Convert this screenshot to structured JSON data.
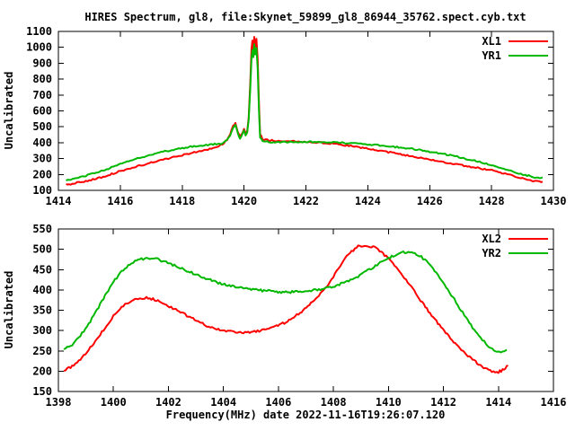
{
  "title": "HIRES Spectrum, gl8, file:Skynet_59899_gl8_86944_35762.spect.cyb.txt",
  "colors": {
    "red_series": "#ff0000",
    "green_series": "#00b800",
    "axis": "#000000",
    "background": "#ffffff",
    "text": "#000000"
  },
  "chart_data": [
    {
      "type": "line",
      "ylabel": "Uncalibrated",
      "xlabel": "",
      "xlim": [
        1414,
        1430
      ],
      "ylim": [
        100,
        1100
      ],
      "xticks": [
        1414,
        1416,
        1418,
        1420,
        1422,
        1424,
        1426,
        1428,
        1430
      ],
      "yticks": [
        100,
        200,
        300,
        400,
        500,
        600,
        700,
        800,
        900,
        1000,
        1100
      ],
      "grid": false,
      "legend_position": "top-right",
      "series": [
        {
          "name": "XL1",
          "color": "#ff0000",
          "points": [
            [
              1414.25,
              135
            ],
            [
              1414.6,
              148
            ],
            [
              1415,
              163
            ],
            [
              1415.5,
              188
            ],
            [
              1416,
              222
            ],
            [
              1416.5,
              249
            ],
            [
              1417,
              274
            ],
            [
              1417.5,
              299
            ],
            [
              1418,
              322
            ],
            [
              1418.5,
              344
            ],
            [
              1419,
              365
            ],
            [
              1419.3,
              390
            ],
            [
              1419.45,
              418
            ],
            [
              1419.55,
              452
            ],
            [
              1419.65,
              505
            ],
            [
              1419.72,
              520
            ],
            [
              1419.8,
              468
            ],
            [
              1419.87,
              436
            ],
            [
              1419.95,
              464
            ],
            [
              1420,
              486
            ],
            [
              1420.05,
              456
            ],
            [
              1420.1,
              470
            ],
            [
              1420.15,
              560
            ],
            [
              1420.2,
              770
            ],
            [
              1420.24,
              990
            ],
            [
              1420.27,
              1040
            ],
            [
              1420.3,
              990
            ],
            [
              1420.33,
              1065
            ],
            [
              1420.36,
              1005
            ],
            [
              1420.4,
              1050
            ],
            [
              1420.44,
              930
            ],
            [
              1420.48,
              650
            ],
            [
              1420.52,
              455
            ],
            [
              1420.6,
              422
            ],
            [
              1420.8,
              415
            ],
            [
              1421,
              412
            ],
            [
              1421.5,
              409
            ],
            [
              1422,
              406
            ],
            [
              1422.5,
              400
            ],
            [
              1423,
              391
            ],
            [
              1423.5,
              378
            ],
            [
              1424,
              362
            ],
            [
              1424.5,
              346
            ],
            [
              1425,
              329
            ],
            [
              1425.5,
              311
            ],
            [
              1426,
              293
            ],
            [
              1426.5,
              276
            ],
            [
              1427,
              259
            ],
            [
              1427.5,
              243
            ],
            [
              1428,
              226
            ],
            [
              1428.5,
              201
            ],
            [
              1429,
              176
            ],
            [
              1429.3,
              161
            ],
            [
              1429.5,
              155
            ],
            [
              1429.65,
              155
            ]
          ]
        },
        {
          "name": "YR1",
          "color": "#00b800",
          "points": [
            [
              1414.25,
              162
            ],
            [
              1414.6,
              178
            ],
            [
              1415,
              198
            ],
            [
              1415.5,
              228
            ],
            [
              1416,
              264
            ],
            [
              1416.5,
              297
            ],
            [
              1417,
              324
            ],
            [
              1417.5,
              347
            ],
            [
              1418,
              366
            ],
            [
              1418.5,
              380
            ],
            [
              1419,
              389
            ],
            [
              1419.3,
              394
            ],
            [
              1419.45,
              415
            ],
            [
              1419.55,
              448
            ],
            [
              1419.65,
              497
            ],
            [
              1419.72,
              511
            ],
            [
              1419.8,
              460
            ],
            [
              1419.87,
              429
            ],
            [
              1419.95,
              456
            ],
            [
              1420,
              478
            ],
            [
              1420.05,
              449
            ],
            [
              1420.1,
              461
            ],
            [
              1420.15,
              540
            ],
            [
              1420.2,
              730
            ],
            [
              1420.24,
              930
            ],
            [
              1420.27,
              985
            ],
            [
              1420.3,
              935
            ],
            [
              1420.33,
              1022
            ],
            [
              1420.36,
              955
            ],
            [
              1420.4,
              992
            ],
            [
              1420.44,
              870
            ],
            [
              1420.48,
              610
            ],
            [
              1420.52,
              435
            ],
            [
              1420.6,
              410
            ],
            [
              1420.8,
              404
            ],
            [
              1421,
              404
            ],
            [
              1421.5,
              405
            ],
            [
              1422,
              405
            ],
            [
              1422.5,
              403
            ],
            [
              1423,
              400
            ],
            [
              1423.5,
              396
            ],
            [
              1424,
              390
            ],
            [
              1424.5,
              382
            ],
            [
              1425,
              371
            ],
            [
              1425.5,
              359
            ],
            [
              1426,
              344
            ],
            [
              1426.5,
              327
            ],
            [
              1427,
              307
            ],
            [
              1427.5,
              284
            ],
            [
              1428,
              257
            ],
            [
              1428.5,
              228
            ],
            [
              1429,
              201
            ],
            [
              1429.3,
              187
            ],
            [
              1429.5,
              179
            ],
            [
              1429.65,
              183
            ]
          ]
        }
      ]
    },
    {
      "type": "line",
      "ylabel": "Uncalibrated",
      "xlabel": "Frequency(MHz) date 2022-11-16T19:26:07.120",
      "xlim": [
        1398,
        1416
      ],
      "ylim": [
        150,
        550
      ],
      "xticks": [
        1398,
        1400,
        1402,
        1404,
        1406,
        1408,
        1410,
        1412,
        1414,
        1416
      ],
      "yticks": [
        150,
        200,
        250,
        300,
        350,
        400,
        450,
        500,
        550
      ],
      "grid": false,
      "legend_position": "top-right",
      "series": [
        {
          "name": "XL2",
          "color": "#ff0000",
          "points": [
            [
              1398.2,
              200
            ],
            [
              1398.5,
              212
            ],
            [
              1398.8,
              230
            ],
            [
              1399.1,
              252
            ],
            [
              1399.4,
              278
            ],
            [
              1399.7,
              308
            ],
            [
              1400,
              336
            ],
            [
              1400.3,
              357
            ],
            [
              1400.6,
              372
            ],
            [
              1400.9,
              380
            ],
            [
              1401.2,
              381
            ],
            [
              1401.5,
              376
            ],
            [
              1401.8,
              368
            ],
            [
              1402.1,
              357
            ],
            [
              1402.5,
              343
            ],
            [
              1402.9,
              329
            ],
            [
              1403.3,
              315
            ],
            [
              1403.7,
              304
            ],
            [
              1404.1,
              298
            ],
            [
              1404.5,
              296
            ],
            [
              1404.9,
              296
            ],
            [
              1405.3,
              299
            ],
            [
              1405.7,
              305
            ],
            [
              1406.1,
              315
            ],
            [
              1406.5,
              330
            ],
            [
              1406.9,
              350
            ],
            [
              1407.3,
              374
            ],
            [
              1407.7,
              404
            ],
            [
              1408,
              432
            ],
            [
              1408.3,
              465
            ],
            [
              1408.6,
              492
            ],
            [
              1408.9,
              507
            ],
            [
              1409.2,
              510
            ],
            [
              1409.5,
              504
            ],
            [
              1409.8,
              490
            ],
            [
              1410.1,
              470
            ],
            [
              1410.4,
              446
            ],
            [
              1410.7,
              419
            ],
            [
              1411,
              391
            ],
            [
              1411.4,
              353
            ],
            [
              1411.8,
              318
            ],
            [
              1412.2,
              285
            ],
            [
              1412.6,
              256
            ],
            [
              1413,
              231
            ],
            [
              1413.4,
              212
            ],
            [
              1413.7,
              201
            ],
            [
              1414,
              198
            ],
            [
              1414.2,
              204
            ],
            [
              1414.35,
              214
            ]
          ]
        },
        {
          "name": "YR2",
          "color": "#00b800",
          "points": [
            [
              1398.2,
              252
            ],
            [
              1398.5,
              266
            ],
            [
              1398.8,
              288
            ],
            [
              1399.1,
              316
            ],
            [
              1399.4,
              350
            ],
            [
              1399.7,
              386
            ],
            [
              1400,
              420
            ],
            [
              1400.3,
              445
            ],
            [
              1400.6,
              463
            ],
            [
              1400.9,
              474
            ],
            [
              1401.2,
              478
            ],
            [
              1401.5,
              477
            ],
            [
              1401.8,
              471
            ],
            [
              1402.1,
              463
            ],
            [
              1402.5,
              452
            ],
            [
              1402.9,
              441
            ],
            [
              1403.3,
              430
            ],
            [
              1403.7,
              420
            ],
            [
              1404.1,
              412
            ],
            [
              1404.5,
              406
            ],
            [
              1404.9,
              402
            ],
            [
              1405.3,
              399
            ],
            [
              1405.7,
              397
            ],
            [
              1406.1,
              395
            ],
            [
              1406.5,
              395
            ],
            [
              1406.9,
              396
            ],
            [
              1407.3,
              399
            ],
            [
              1407.7,
              404
            ],
            [
              1408.1,
              411
            ],
            [
              1408.5,
              421
            ],
            [
              1408.9,
              434
            ],
            [
              1409.3,
              450
            ],
            [
              1409.7,
              466
            ],
            [
              1410,
              478
            ],
            [
              1410.3,
              488
            ],
            [
              1410.6,
              493
            ],
            [
              1410.9,
              491
            ],
            [
              1411.2,
              481
            ],
            [
              1411.5,
              463
            ],
            [
              1411.8,
              437
            ],
            [
              1412.1,
              408
            ],
            [
              1412.4,
              376
            ],
            [
              1412.7,
              344
            ],
            [
              1413,
              313
            ],
            [
              1413.3,
              286
            ],
            [
              1413.6,
              264
            ],
            [
              1413.9,
              249
            ],
            [
              1414.15,
              246
            ],
            [
              1414.3,
              253
            ]
          ]
        }
      ]
    }
  ]
}
